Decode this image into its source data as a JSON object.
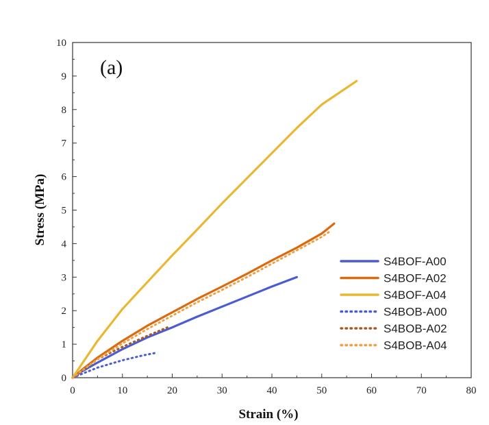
{
  "chart_data": {
    "type": "line",
    "panel_label": "(a)",
    "xlabel": "Strain (%)",
    "ylabel": "Stress (MPa)",
    "xlim": [
      0,
      80
    ],
    "ylim": [
      0,
      10
    ],
    "xticks": [
      "0",
      "10",
      "20",
      "30",
      "40",
      "50",
      "60",
      "70",
      "80"
    ],
    "yticks": [
      "0",
      "1",
      "2",
      "3",
      "4",
      "5",
      "6",
      "7",
      "8",
      "9",
      "10"
    ],
    "legend_position": "bottom-right",
    "series": [
      {
        "name": "S4BOF-A00",
        "color": "#4a5bd3",
        "style": "solid",
        "x": [
          0,
          2,
          5,
          10,
          15,
          20,
          25,
          30,
          35,
          40,
          45
        ],
        "y": [
          0,
          0.2,
          0.45,
          0.85,
          1.2,
          1.5,
          1.82,
          2.12,
          2.42,
          2.72,
          3.0
        ]
      },
      {
        "name": "S4BOF-A02",
        "color": "#d96a10",
        "style": "solid",
        "x": [
          0,
          2,
          5,
          10,
          15,
          20,
          25,
          30,
          35,
          40,
          45,
          50,
          52.5
        ],
        "y": [
          0,
          0.25,
          0.6,
          1.1,
          1.55,
          1.95,
          2.35,
          2.72,
          3.1,
          3.5,
          3.88,
          4.3,
          4.6
        ]
      },
      {
        "name": "S4BOF-A04",
        "color": "#e8b832",
        "style": "solid",
        "x": [
          0,
          5,
          10,
          15,
          20,
          25,
          30,
          35,
          40,
          45,
          50,
          57
        ],
        "y": [
          0,
          1.1,
          2.05,
          2.85,
          3.65,
          4.42,
          5.2,
          5.95,
          6.7,
          7.45,
          8.15,
          8.85
        ]
      },
      {
        "name": "S4BOB-A00",
        "color": "#4a5bd3",
        "style": "dotted",
        "x": [
          0,
          2,
          5,
          10,
          14,
          17
        ],
        "y": [
          0,
          0.12,
          0.3,
          0.52,
          0.66,
          0.75
        ]
      },
      {
        "name": "S4BOB-A02",
        "color": "#a85a20",
        "style": "dotted",
        "x": [
          0,
          2,
          5,
          10,
          15,
          19
        ],
        "y": [
          0,
          0.22,
          0.55,
          0.92,
          1.25,
          1.5
        ]
      },
      {
        "name": "S4BOB-A04",
        "color": "#f0a040",
        "style": "dotted",
        "x": [
          0,
          2,
          5,
          10,
          15,
          20,
          25,
          30,
          35,
          40,
          45,
          50,
          51.5
        ],
        "y": [
          0,
          0.22,
          0.55,
          1.02,
          1.45,
          1.85,
          2.25,
          2.62,
          3.0,
          3.4,
          3.8,
          4.2,
          4.35
        ]
      }
    ]
  }
}
